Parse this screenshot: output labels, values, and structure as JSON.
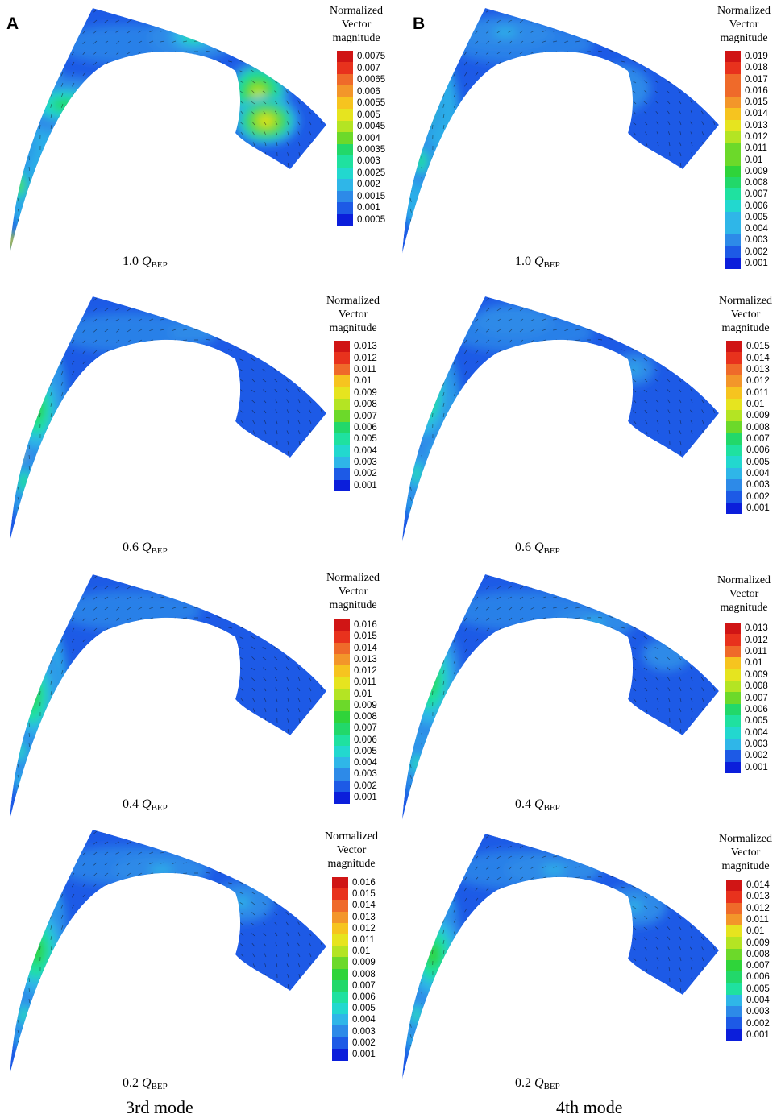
{
  "figure": {
    "panels": [
      {
        "letter": "A",
        "mode_label": "3rd mode"
      },
      {
        "letter": "B",
        "mode_label": "4th mode"
      }
    ],
    "legend_title_line1": "Normalized",
    "legend_title_line2": "Vector",
    "legend_title_line3": "magnitude",
    "flow_condition_prefix_unit": "Q",
    "flow_condition_subscript": "BEP",
    "colormap": [
      "#0b1edb",
      "#1d5ae6",
      "#2d8ae8",
      "#2fb6e8",
      "#22d8cf",
      "#1fe1a0",
      "#22d86a",
      "#2fd43a",
      "#6cd92a",
      "#b4e423",
      "#e6e41f",
      "#f6c41f",
      "#f3962a",
      "#ef6a2a",
      "#e8321d",
      "#d01515"
    ],
    "vector_color": "#111111"
  },
  "cells": [
    {
      "id": "a1",
      "column": "A",
      "condition": "1.0",
      "legend_ticks": [
        "0.0075",
        "0.007",
        "0.0065",
        "0.006",
        "0.0055",
        "0.005",
        "0.0045",
        "0.004",
        "0.0035",
        "0.003",
        "0.0025",
        "0.002",
        "0.0015",
        "0.001",
        "0.0005"
      ]
    },
    {
      "id": "b1",
      "column": "B",
      "condition": "1.0",
      "legend_ticks": [
        "0.019",
        "0.018",
        "0.017",
        "0.016",
        "0.015",
        "0.014",
        "0.013",
        "0.012",
        "0.011",
        "0.01",
        "0.009",
        "0.008",
        "0.007",
        "0.006",
        "0.005",
        "0.004",
        "0.003",
        "0.002",
        "0.001"
      ]
    },
    {
      "id": "a2",
      "column": "A",
      "condition": "0.6",
      "legend_ticks": [
        "0.013",
        "0.012",
        "0.011",
        "0.01",
        "0.009",
        "0.008",
        "0.007",
        "0.006",
        "0.005",
        "0.004",
        "0.003",
        "0.002",
        "0.001"
      ]
    },
    {
      "id": "b2",
      "column": "B",
      "condition": "0.6",
      "legend_ticks": [
        "0.015",
        "0.014",
        "0.013",
        "0.012",
        "0.011",
        "0.01",
        "0.009",
        "0.008",
        "0.007",
        "0.006",
        "0.005",
        "0.004",
        "0.003",
        "0.002",
        "0.001"
      ]
    },
    {
      "id": "a3",
      "column": "A",
      "condition": "0.4",
      "legend_ticks": [
        "0.016",
        "0.015",
        "0.014",
        "0.013",
        "0.012",
        "0.011",
        "0.01",
        "0.009",
        "0.008",
        "0.007",
        "0.006",
        "0.005",
        "0.004",
        "0.003",
        "0.002",
        "0.001"
      ]
    },
    {
      "id": "b3",
      "column": "B",
      "condition": "0.4",
      "legend_ticks": [
        "0.013",
        "0.012",
        "0.011",
        "0.01",
        "0.009",
        "0.008",
        "0.007",
        "0.006",
        "0.005",
        "0.004",
        "0.003",
        "0.002",
        "0.001"
      ]
    },
    {
      "id": "a4",
      "column": "A",
      "condition": "0.2",
      "legend_ticks": [
        "0.016",
        "0.015",
        "0.014",
        "0.013",
        "0.012",
        "0.011",
        "0.01",
        "0.009",
        "0.008",
        "0.007",
        "0.006",
        "0.005",
        "0.004",
        "0.003",
        "0.002",
        "0.001"
      ]
    },
    {
      "id": "b4",
      "column": "B",
      "condition": "0.2",
      "legend_ticks": [
        "0.014",
        "0.013",
        "0.012",
        "0.011",
        "0.01",
        "0.009",
        "0.008",
        "0.007",
        "0.006",
        "0.005",
        "0.004",
        "0.003",
        "0.002",
        "0.001"
      ]
    }
  ]
}
